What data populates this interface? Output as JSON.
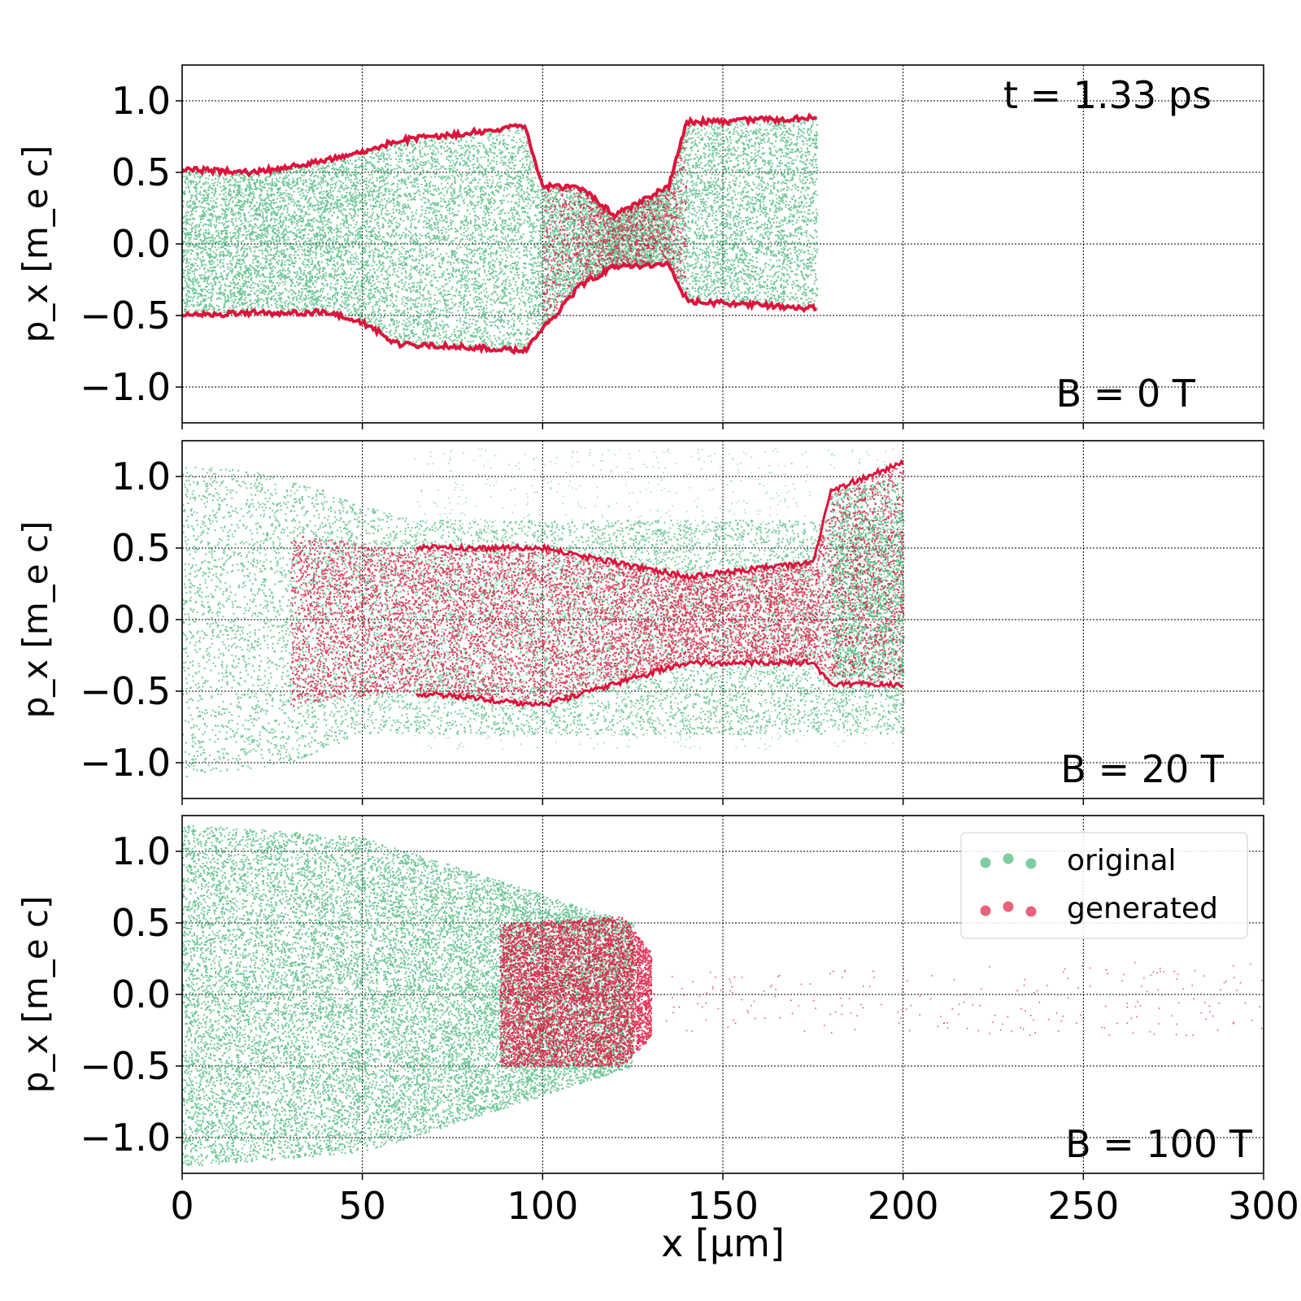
{
  "figure": {
    "time_annotation": "t = 1.33 ps",
    "xlabel": "x [μm]",
    "legend": {
      "placement": "upper-right of bottom panel",
      "entries": [
        {
          "label": "original",
          "color": "#3cb371"
        },
        {
          "label": "generated",
          "color": "#dc143c"
        }
      ]
    }
  },
  "chart_data": {
    "type": "scatter",
    "xlim": [
      0,
      300
    ],
    "ylim": [
      -1.25,
      1.25
    ],
    "x_ticks": [
      0,
      50,
      100,
      150,
      200,
      250,
      300
    ],
    "y_ticks": [
      -1.0,
      -0.5,
      0.0,
      0.5,
      1.0
    ],
    "grid": true,
    "panels": [
      {
        "annotation": "B = 0 T",
        "ylabel": "p_x [m_e c]",
        "original": {
          "x_range": [
            0,
            176
          ],
          "envelope": [
            [
              0,
              -0.5,
              0.52
            ],
            [
              20,
              -0.48,
              0.5
            ],
            [
              40,
              -0.48,
              0.58
            ],
            [
              50,
              -0.55,
              0.65
            ],
            [
              60,
              -0.7,
              0.72
            ],
            [
              80,
              -0.72,
              0.78
            ],
            [
              95,
              -0.75,
              0.82
            ],
            [
              100,
              -0.6,
              0.4
            ],
            [
              110,
              -0.3,
              0.4
            ],
            [
              120,
              -0.15,
              0.2
            ],
            [
              135,
              -0.15,
              0.4
            ],
            [
              140,
              -0.4,
              0.85
            ],
            [
              176,
              -0.45,
              0.88
            ]
          ]
        },
        "generated": {
          "x_range": [
            0,
            176
          ],
          "envelope": [
            [
              0,
              -0.5,
              0.52
            ],
            [
              20,
              -0.48,
              0.5
            ],
            [
              40,
              -0.48,
              0.58
            ],
            [
              50,
              -0.55,
              0.65
            ],
            [
              60,
              -0.7,
              0.72
            ],
            [
              80,
              -0.72,
              0.78
            ],
            [
              95,
              -0.75,
              0.82
            ],
            [
              100,
              -0.6,
              0.4
            ],
            [
              110,
              -0.3,
              0.4
            ],
            [
              120,
              -0.15,
              0.2
            ],
            [
              135,
              -0.15,
              0.4
            ],
            [
              140,
              -0.4,
              0.85
            ],
            [
              176,
              -0.45,
              0.88
            ]
          ]
        }
      },
      {
        "annotation": "B = 20 T",
        "ylabel": "p_x [m_e c]",
        "original": {
          "x_range": [
            0,
            200
          ],
          "envelope": [
            [
              0,
              -1.1,
              1.1
            ],
            [
              30,
              -1.0,
              1.0
            ],
            [
              50,
              -0.8,
              0.8
            ],
            [
              64,
              -0.8,
              0.7
            ]
          ]
        },
        "generated": {
          "x_range": [
            30,
            200
          ],
          "envelope": [
            [
              30,
              -0.6,
              0.6
            ],
            [
              60,
              -0.5,
              0.5
            ],
            [
              100,
              -0.6,
              0.5
            ],
            [
              140,
              -0.3,
              0.3
            ],
            [
              175,
              -0.3,
              0.4
            ],
            [
              180,
              -0.45,
              0.9
            ],
            [
              200,
              -0.45,
              1.1
            ]
          ]
        }
      },
      {
        "annotation": "B = 100 T",
        "ylabel": "p_x [m_e c]",
        "original": {
          "x_range": [
            0,
            125
          ],
          "envelope": [
            [
              0,
              -1.2,
              1.2
            ],
            [
              50,
              -1.1,
              1.1
            ],
            [
              88,
              -0.8,
              0.8
            ],
            [
              125,
              -0.5,
              0.5
            ]
          ]
        },
        "generated": {
          "x_range": [
            85,
            300
          ],
          "envelope": [
            [
              88,
              -0.5,
              0.5
            ],
            [
              122,
              -0.5,
              0.55
            ],
            [
              130,
              -0.3,
              0.3
            ]
          ]
        }
      }
    ]
  }
}
